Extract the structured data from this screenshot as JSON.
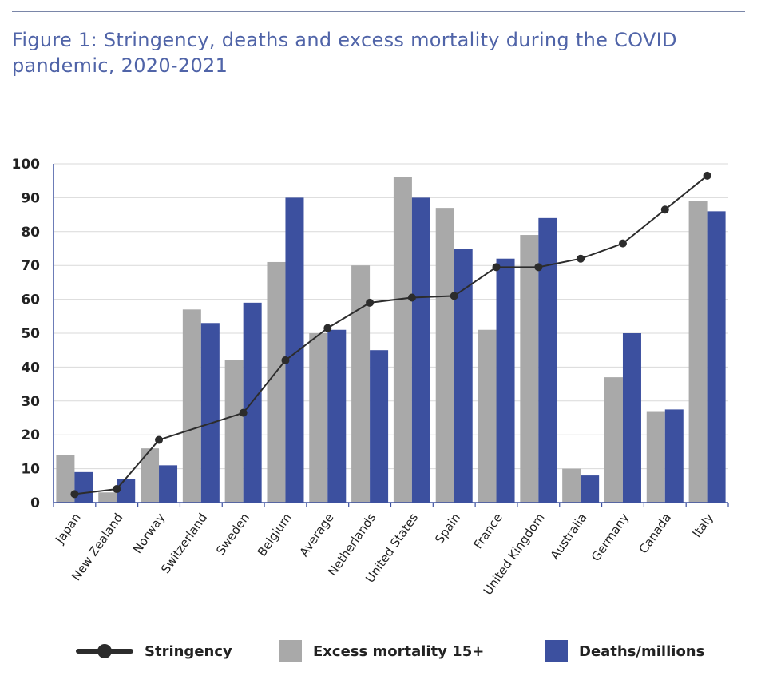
{
  "page": {
    "title": "Figure 1: Stringency, deaths and excess mortality during the COVID pandemic, 2020-2021"
  },
  "colors": {
    "title": "#5064a8",
    "excess": "#a9a9a9",
    "deaths": "#3c509f",
    "stringency": "#2c2c2c",
    "grid": "#d9d9d9",
    "axis": "#3c509f"
  },
  "legend": {
    "stringency": "Stringency",
    "excess": "Excess mortality 15+",
    "deaths": "Deaths/millions"
  },
  "chart_data": {
    "type": "bar",
    "categories": [
      "Japan",
      "New Zealand",
      "Norway",
      "Switzerland",
      "Sweden",
      "Belgium",
      "Average",
      "Netherlands",
      "United States",
      "Spain",
      "France",
      "United Kingdom",
      "Australia",
      "Germany",
      "Canada",
      "Italy"
    ],
    "series": [
      {
        "name": "Excess mortality 15+",
        "type": "bar",
        "values": [
          14,
          3,
          16,
          57,
          42,
          71,
          50,
          70,
          96,
          87,
          51,
          79,
          10,
          37,
          27,
          89
        ]
      },
      {
        "name": "Deaths/millions",
        "type": "bar",
        "values": [
          9,
          7,
          11,
          53,
          59,
          90,
          51,
          45,
          90,
          75,
          72,
          84,
          8,
          50,
          27.5,
          86
        ]
      },
      {
        "name": "Stringency",
        "type": "line",
        "values": [
          2.5,
          4,
          18.5,
          null,
          26.5,
          42,
          51.5,
          59,
          60.5,
          61,
          69.5,
          69.5,
          72,
          76.5,
          86.5,
          96.5
        ]
      }
    ],
    "ylim": [
      0,
      100
    ],
    "yticks": [
      0,
      10,
      20,
      30,
      40,
      50,
      60,
      70,
      80,
      90,
      100
    ],
    "grid": true,
    "legend_position": "bottom"
  }
}
